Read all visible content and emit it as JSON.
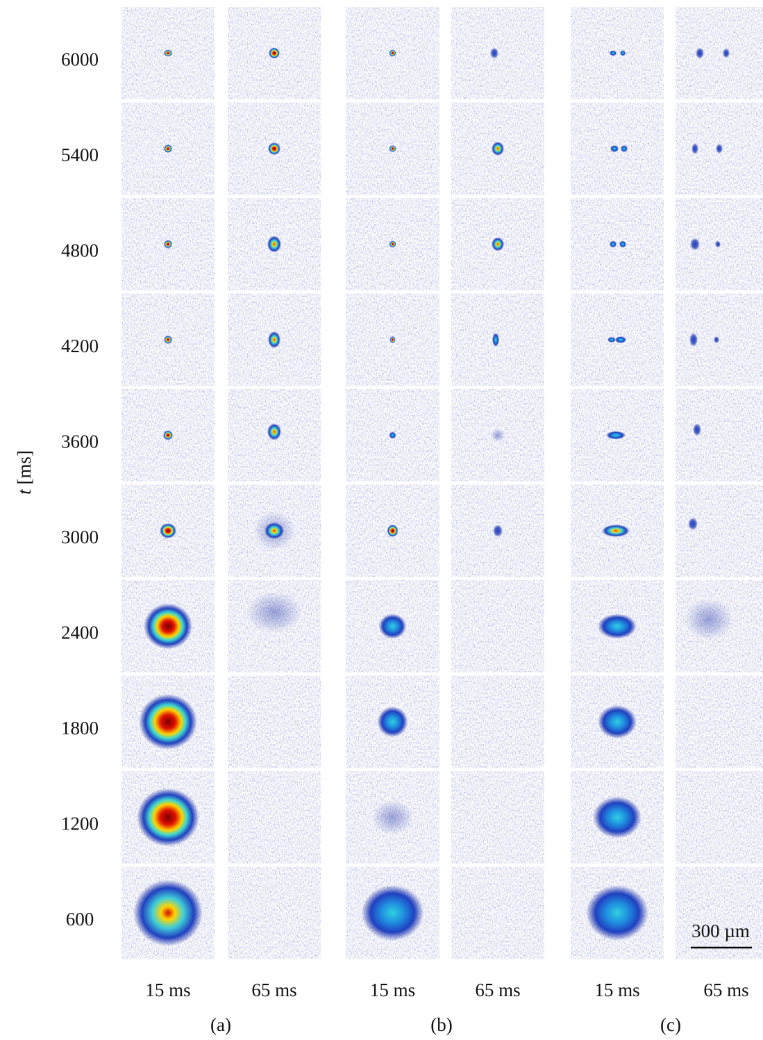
{
  "figure": {
    "y_label_symbol": "t",
    "y_label_unit": "[ms]",
    "rows": [
      6000,
      5400,
      4800,
      4200,
      3600,
      3000,
      2400,
      1800,
      1200,
      600
    ],
    "columns": [
      "15 ms",
      "65 ms",
      "15 ms",
      "65 ms",
      "15 ms",
      "65 ms"
    ],
    "groups": [
      "(a)",
      "(b)",
      "(c)"
    ],
    "scale_bar": "300 µm"
  }
}
